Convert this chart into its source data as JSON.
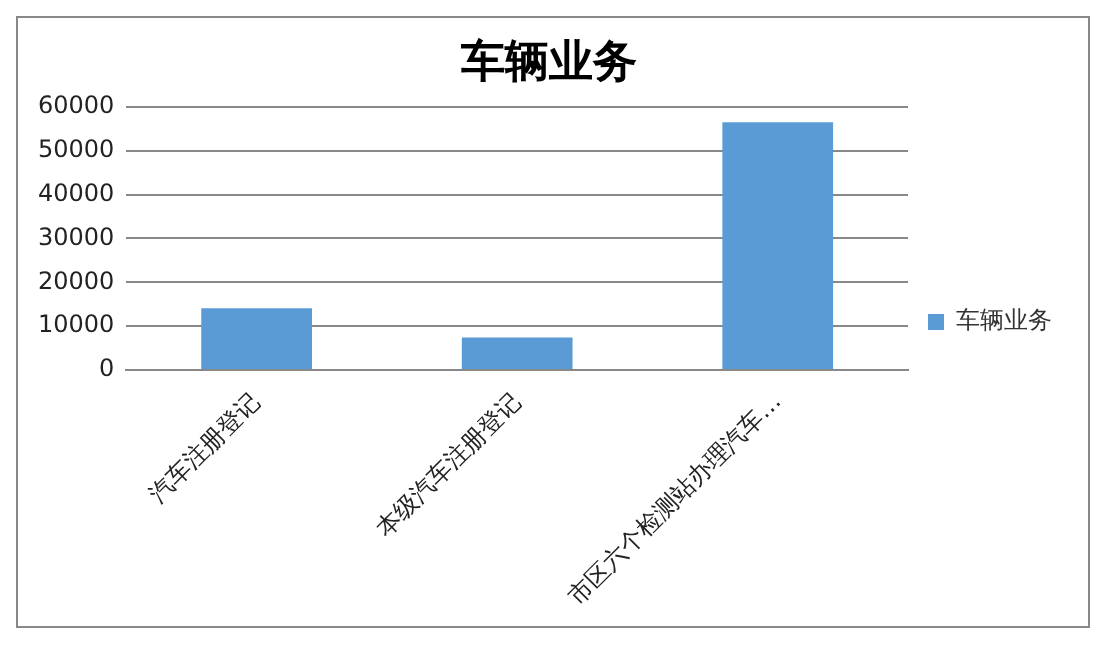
{
  "chart_data": {
    "type": "bar",
    "title": "车辆业务",
    "categories": [
      "汽车注册登记",
      "本级汽车注册登记",
      "市区六个检测站办理汽车…"
    ],
    "series": [
      {
        "name": "车辆业务",
        "color": "#5b9bd5",
        "values": [
          14100,
          7400,
          56500
        ]
      }
    ],
    "ylim": [
      0,
      60000
    ],
    "yticks": [
      0,
      10000,
      20000,
      30000,
      40000,
      50000,
      60000
    ],
    "grid": "y",
    "legend": "right"
  }
}
